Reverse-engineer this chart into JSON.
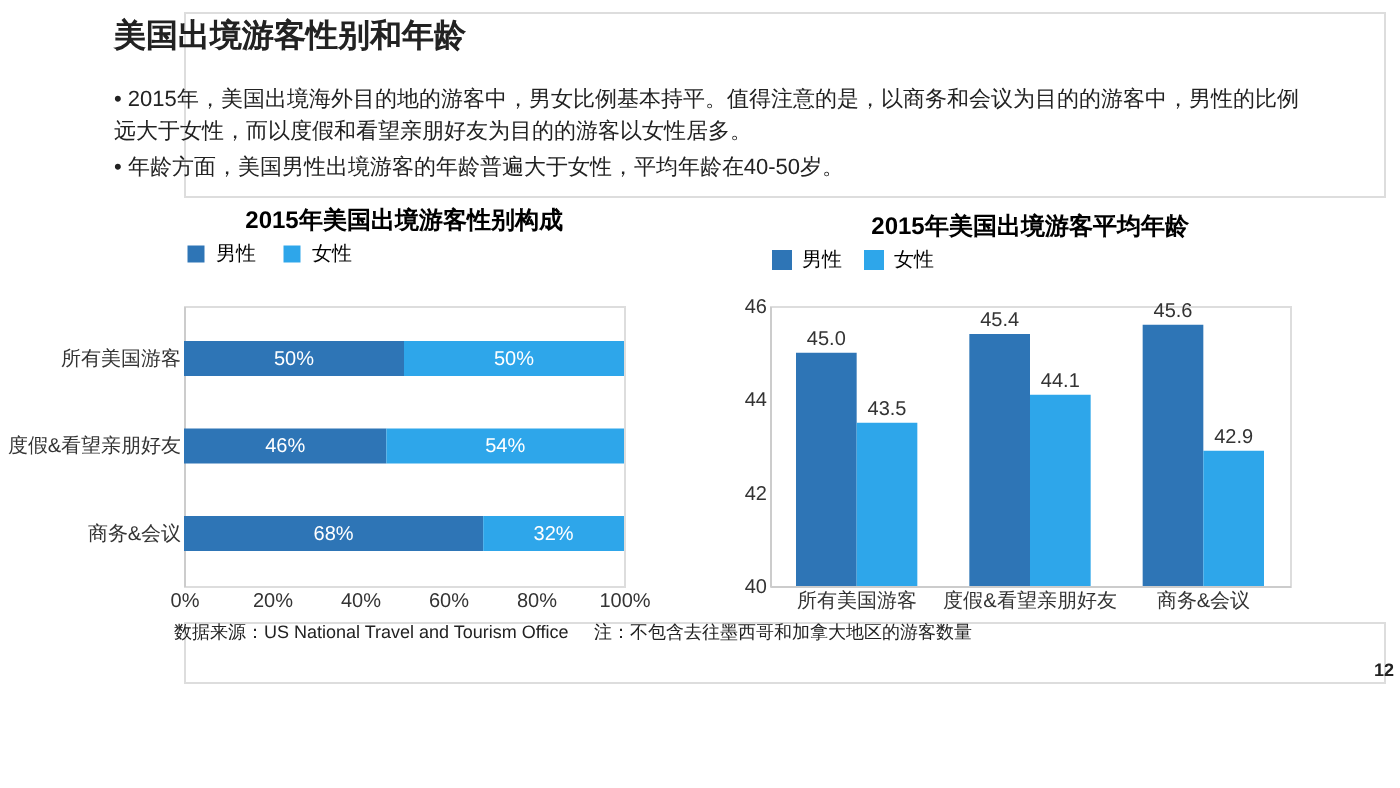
{
  "chart_data": [
    {
      "type": "bar",
      "title": "2015年美国出境游客性别构成",
      "orientation": "horizontal",
      "stacked": true,
      "categories": [
        "所有美国游客",
        "度假&看望亲朋好友",
        "商务&会议"
      ],
      "series": [
        {
          "name": "男性",
          "color": "#2e75b6",
          "values": [
            50,
            46,
            68
          ],
          "value_labels": [
            "50%",
            "46%",
            "68%"
          ]
        },
        {
          "name": "女性",
          "color": "#2ea6ea",
          "values": [
            50,
            54,
            32
          ],
          "value_labels": [
            "50%",
            "54%",
            "32%"
          ]
        }
      ],
      "xlim": [
        0,
        100
      ],
      "xticks": [
        {
          "value": 0,
          "label": "0%"
        },
        {
          "value": 20,
          "label": "20%"
        },
        {
          "value": 40,
          "label": "40%"
        },
        {
          "value": 60,
          "label": "60%"
        },
        {
          "value": 80,
          "label": "80%"
        },
        {
          "value": 100,
          "label": "100%"
        }
      ],
      "legend": "top",
      "grid": false,
      "annotations": [
        "美国出境游客性别和年龄",
        "• 2015年，美国出境海外目的地的游客中，男女比例基本持平。值得注意的是，以商务和会议为目的的游客中，男性的比例远大于女性，而以度假和看望亲朋好友为目的的游客以女性居多。",
        "• 年龄方面，美国男性出境游客的年龄普遍大于女性，平均年龄在40-50岁。",
        "数据来源：US National Travel and Tourism Office",
        "注：不包含去往墨西哥和加拿大地区的游客数量",
        "12"
      ]
    },
    {
      "type": "bar",
      "title": "2015年美国出境游客平均年龄",
      "categories": [
        "所有美国游客",
        "度假&看望亲朋好友",
        "商务&会议"
      ],
      "series": [
        {
          "name": "男性",
          "color": "#2e75b6",
          "values": [
            45.0,
            45.4,
            45.6
          ],
          "value_labels": [
            "45.0",
            "45.4",
            "45.6"
          ]
        },
        {
          "name": "女性",
          "color": "#2ea6ea",
          "values": [
            43.5,
            44.1,
            42.9
          ],
          "value_labels": [
            "43.5",
            "44.1",
            "42.9"
          ]
        }
      ],
      "ylim": [
        40,
        46
      ],
      "yticks": [
        40,
        42,
        44,
        46
      ],
      "legend": "top",
      "grid": false
    }
  ]
}
